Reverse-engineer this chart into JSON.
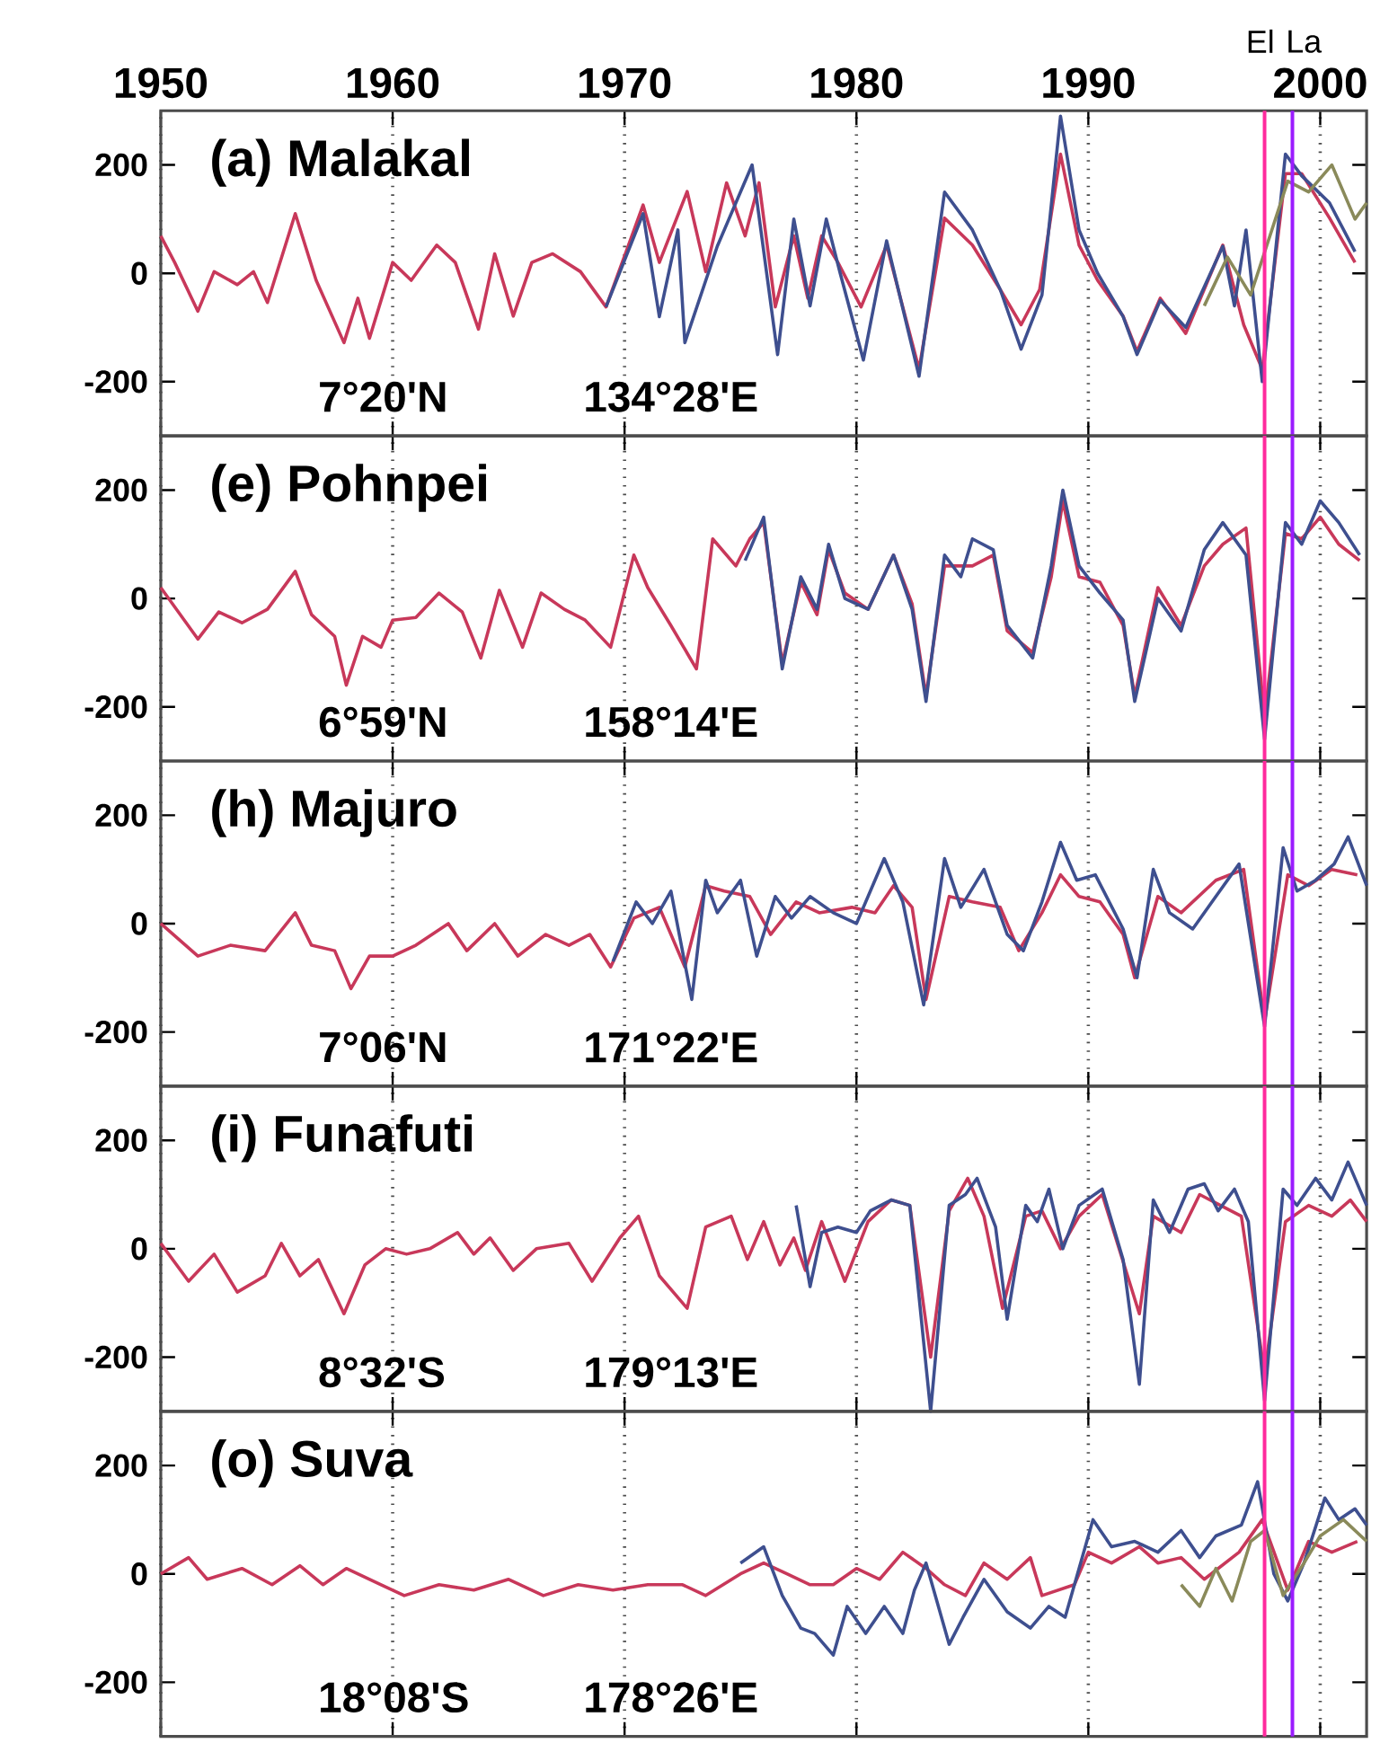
{
  "chart_data": [
    {
      "type": "line",
      "title": "(a) Malakal",
      "annotations": [
        "7°20'N",
        "134°28'E"
      ],
      "xlim": [
        1950,
        2002
      ],
      "xticks": [
        1950,
        1960,
        1970,
        1980,
        1990,
        2000
      ],
      "ylim": [
        -300,
        300
      ],
      "yticks": [
        -200,
        0,
        200
      ],
      "grid": "x",
      "ref_lines": [
        {
          "axis": "x",
          "value": 1997.6,
          "label": "El",
          "color": "#ff2a9d"
        },
        {
          "axis": "x",
          "value": 1998.8,
          "label": "La",
          "color": "#9b1cff"
        }
      ],
      "series": [
        {
          "color": "#c8385a",
          "x": [
            1950,
            1950.6,
            1951.6,
            1952.3,
            1953.3,
            1954,
            1954.6,
            1955.8,
            1956.7,
            1957.9,
            1958.5,
            1959,
            1960,
            1960.8,
            1961.9,
            1962.7,
            1963.7,
            1964.4,
            1965.2,
            1966,
            1966.9,
            1968.1,
            1969.2,
            1970.8,
            1971.5,
            1972.7,
            1973.5,
            1974.4,
            1975.2,
            1975.8,
            1976.5,
            1977.3,
            1977.9,
            1978.5,
            1979.2,
            1980.2,
            1981.3,
            1982.7,
            1983.8,
            1985,
            1986.2,
            1987.1,
            1987.9,
            1988.8,
            1989.6,
            1990.4,
            1991.5,
            1992.1,
            1993.1,
            1994.2,
            1995.8,
            1996.7,
            1997.5,
            1998.5,
            1999.2,
            2000.4,
            2001.5
          ],
          "values": [
            69,
            20,
            -70,
            3,
            -21,
            3,
            -54,
            110,
            -13,
            -128,
            -46,
            -120,
            20,
            -13,
            52,
            20,
            -103,
            36,
            -79,
            20,
            36,
            3,
            -62,
            126,
            20,
            151,
            3,
            167,
            69,
            167,
            -62,
            69,
            -46,
            69,
            20,
            -62,
            52,
            -177,
            102,
            52,
            -30,
            -95,
            -30,
            220,
            52,
            -13,
            -79,
            -144,
            -46,
            -111,
            52,
            -95,
            -177,
            184,
            184,
            102,
            20
          ]
        },
        {
          "color": "#3e4f8f",
          "x": [
            1969.2,
            1970.8,
            1971.5,
            1972.3,
            1972.6,
            1974,
            1975.5,
            1976.6,
            1977.3,
            1978,
            1978.7,
            1979.3,
            1980.3,
            1981.3,
            1982.7,
            1983.8,
            1985,
            1986.2,
            1987.1,
            1988,
            1988.8,
            1989.6,
            1990.4,
            1991.5,
            1992.1,
            1993.1,
            1994.2,
            1995.8,
            1996.3,
            1996.8,
            1997.5,
            1998.5,
            1999.2,
            2000.4,
            2001.5
          ],
          "values": [
            -62,
            110,
            -80,
            80,
            -128,
            50,
            200,
            -150,
            100,
            -60,
            100,
            0,
            -160,
            60,
            -190,
            150,
            80,
            -30,
            -140,
            -40,
            290,
            80,
            0,
            -80,
            -150,
            -50,
            -100,
            50,
            -60,
            80,
            -200,
            220,
            180,
            130,
            40
          ]
        },
        {
          "color": "#8a8a5a",
          "x": [
            1995,
            1996,
            1997,
            1998.6,
            1999.5,
            2000.5,
            2001.5,
            2002
          ],
          "values": [
            -60,
            30,
            -40,
            170,
            150,
            200,
            100,
            130
          ]
        }
      ]
    },
    {
      "type": "line",
      "title": "(e) Pohnpei",
      "annotations": [
        "6°59'N",
        "158°14'E"
      ],
      "xlim": [
        1950,
        2002
      ],
      "xticks": [
        1950,
        1960,
        1970,
        1980,
        1990,
        2000
      ],
      "ylim": [
        -300,
        300
      ],
      "yticks": [
        -200,
        0,
        200
      ],
      "grid": "x",
      "tick_labels": "y",
      "ref_lines": [
        {
          "axis": "x",
          "value": 1997.6,
          "color": "#ff2a9d"
        },
        {
          "axis": "x",
          "value": 1998.8,
          "color": "#9b1cff"
        }
      ],
      "series": [
        {
          "color": "#c8385a",
          "x": [
            1950,
            1951.6,
            1952.5,
            1953.5,
            1954.6,
            1955.8,
            1956.5,
            1957.5,
            1958,
            1958.7,
            1959.5,
            1960,
            1961,
            1962,
            1963,
            1963.8,
            1964.6,
            1965.6,
            1966.4,
            1967.4,
            1968.3,
            1969.4,
            1970.4,
            1971,
            1972,
            1973.1,
            1973.8,
            1974.8,
            1975.4,
            1976,
            1976.8,
            1977.6,
            1978.3,
            1978.8,
            1979.5,
            1980.5,
            1981.6,
            1982.4,
            1983,
            1983.8,
            1985,
            1985.9,
            1986.5,
            1987.6,
            1988.4,
            1988.9,
            1989.6,
            1990.5,
            1991.5,
            1992,
            1993,
            1994,
            1995,
            1995.8,
            1996.8,
            1997.6,
            1998.5,
            1999.2,
            2000,
            2000.8,
            2001.7
          ],
          "values": [
            20,
            -75,
            -25,
            -45,
            -20,
            50,
            -30,
            -70,
            -160,
            -70,
            -90,
            -40,
            -35,
            10,
            -25,
            -110,
            15,
            -90,
            10,
            -20,
            -40,
            -90,
            80,
            20,
            -50,
            -130,
            110,
            60,
            110,
            140,
            -120,
            30,
            -30,
            90,
            10,
            -20,
            80,
            -10,
            -180,
            60,
            60,
            80,
            -60,
            -100,
            40,
            180,
            40,
            30,
            -50,
            -180,
            20,
            -50,
            60,
            100,
            130,
            -220,
            120,
            110,
            150,
            100,
            70
          ]
        },
        {
          "color": "#3e4f8f",
          "x": [
            1975.2,
            1976,
            1976.8,
            1977.6,
            1978.3,
            1978.8,
            1979.5,
            1980.5,
            1981.6,
            1982.4,
            1983,
            1983.8,
            1984.5,
            1985,
            1985.9,
            1986.5,
            1987.6,
            1988.4,
            1988.9,
            1989.6,
            1990.5,
            1991.5,
            1992,
            1993,
            1994,
            1995,
            1995.8,
            1996.8,
            1997.6,
            1998.5,
            1999.2,
            2000,
            2000.8,
            2001.7
          ],
          "values": [
            70,
            150,
            -130,
            40,
            -20,
            100,
            0,
            -20,
            80,
            -20,
            -190,
            80,
            40,
            110,
            90,
            -50,
            -110,
            60,
            200,
            60,
            10,
            -40,
            -190,
            0,
            -60,
            90,
            140,
            80,
            -260,
            140,
            100,
            180,
            140,
            80
          ]
        }
      ]
    },
    {
      "type": "line",
      "title": "(h) Majuro",
      "annotations": [
        "7°06'N",
        "171°22'E"
      ],
      "xlim": [
        1950,
        2002
      ],
      "xticks": [
        1950,
        1960,
        1970,
        1980,
        1990,
        2000
      ],
      "ylim": [
        -300,
        300
      ],
      "yticks": [
        -200,
        0,
        200
      ],
      "grid": "x",
      "tick_labels": "y",
      "ref_lines": [
        {
          "axis": "x",
          "value": 1997.6,
          "color": "#ff2a9d"
        },
        {
          "axis": "x",
          "value": 1998.8,
          "color": "#9b1cff"
        }
      ],
      "series": [
        {
          "color": "#c8385a",
          "x": [
            1950,
            1951.6,
            1953,
            1954.5,
            1955.8,
            1956.5,
            1957.5,
            1958.2,
            1959,
            1960,
            1961,
            1962.4,
            1963.2,
            1964.4,
            1965.4,
            1966.6,
            1967.6,
            1968.5,
            1969.4,
            1970.4,
            1971.5,
            1972.6,
            1973.5,
            1974.3,
            1975.4,
            1976.3,
            1977.4,
            1978.4,
            1979.8,
            1980.8,
            1981.6,
            1982.4,
            1983,
            1984,
            1985,
            1986.2,
            1987,
            1988,
            1988.8,
            1989.6,
            1990.5,
            1991.5,
            1992,
            1993,
            1994,
            1995.5,
            1996.7,
            1997.6,
            1998.6,
            1999.5,
            2000.5,
            2001.6
          ],
          "values": [
            0,
            -60,
            -40,
            -50,
            20,
            -40,
            -50,
            -120,
            -60,
            -60,
            -40,
            0,
            -50,
            0,
            -60,
            -20,
            -40,
            -20,
            -80,
            10,
            30,
            -80,
            70,
            60,
            50,
            -20,
            40,
            20,
            30,
            20,
            70,
            30,
            -140,
            50,
            40,
            30,
            -50,
            20,
            90,
            50,
            40,
            -20,
            -100,
            50,
            20,
            80,
            100,
            -180,
            90,
            70,
            100,
            90
          ]
        },
        {
          "color": "#3e4f8f",
          "x": [
            1969.5,
            1970.5,
            1971.2,
            1972,
            1972.9,
            1973.5,
            1974,
            1975,
            1975.7,
            1976.5,
            1977.2,
            1978,
            1979,
            1980,
            1981.2,
            1982,
            1982.9,
            1983.8,
            1984.5,
            1985.5,
            1986.5,
            1987.2,
            1988,
            1988.8,
            1989.5,
            1990.3,
            1991.5,
            1992.1,
            1992.8,
            1993.5,
            1994.5,
            1995.5,
            1996.5,
            1997.6,
            1998.4,
            1999,
            1999.8,
            2000.6,
            2001.2,
            2002
          ],
          "values": [
            -70,
            40,
            0,
            60,
            -140,
            80,
            20,
            80,
            -60,
            50,
            10,
            50,
            20,
            0,
            120,
            40,
            -150,
            120,
            30,
            100,
            -20,
            -50,
            40,
            150,
            80,
            90,
            -10,
            -100,
            100,
            20,
            -10,
            50,
            110,
            -190,
            140,
            60,
            80,
            110,
            160,
            70
          ]
        }
      ]
    },
    {
      "type": "line",
      "title": "(i) Funafuti",
      "annotations": [
        "8°32'S",
        "179°13'E"
      ],
      "xlim": [
        1950,
        2002
      ],
      "xticks": [
        1950,
        1960,
        1970,
        1980,
        1990,
        2000
      ],
      "ylim": [
        -300,
        300
      ],
      "yticks": [
        -200,
        0,
        200
      ],
      "grid": "x",
      "tick_labels": "y",
      "ref_lines": [
        {
          "axis": "x",
          "value": 1997.6,
          "color": "#ff2a9d"
        },
        {
          "axis": "x",
          "value": 1998.8,
          "color": "#9b1cff"
        }
      ],
      "series": [
        {
          "color": "#c8385a",
          "x": [
            1950,
            1951.2,
            1952.3,
            1953.3,
            1954.5,
            1955.2,
            1956,
            1956.8,
            1957.9,
            1958.8,
            1959.7,
            1960.6,
            1961.6,
            1962.8,
            1963.5,
            1964.2,
            1965.2,
            1966.2,
            1967.6,
            1968.6,
            1969.8,
            1970.6,
            1971.5,
            1972.7,
            1973.5,
            1974.6,
            1975.3,
            1976,
            1976.7,
            1977.3,
            1977.8,
            1978.5,
            1979.5,
            1980.5,
            1981.5,
            1982.3,
            1983.2,
            1984,
            1984.8,
            1985.5,
            1986.3,
            1987.3,
            1988,
            1988.8,
            1989.6,
            1990.6,
            1992.2,
            1992.8,
            1994,
            1994.8,
            1995.7,
            1996.6,
            1997.6,
            1998.5,
            1999.5,
            2000.5,
            2001.3,
            2002
          ],
          "values": [
            10,
            -60,
            -10,
            -80,
            -50,
            10,
            -50,
            -20,
            -120,
            -30,
            0,
            -10,
            0,
            30,
            -10,
            20,
            -40,
            0,
            10,
            -60,
            20,
            60,
            -50,
            -110,
            40,
            60,
            -20,
            50,
            -30,
            20,
            -40,
            50,
            -60,
            50,
            90,
            80,
            -200,
            70,
            130,
            60,
            -110,
            60,
            70,
            0,
            60,
            100,
            -120,
            60,
            30,
            100,
            80,
            60,
            -230,
            50,
            80,
            60,
            90,
            50
          ]
        },
        {
          "color": "#3e4f8f",
          "x": [
            1977.4,
            1978,
            1978.5,
            1979.2,
            1980,
            1980.6,
            1981.5,
            1982.3,
            1983.2,
            1984,
            1984.7,
            1985.2,
            1986,
            1986.5,
            1987.3,
            1987.8,
            1988.3,
            1988.9,
            1989.6,
            1990.6,
            1991.5,
            1992.2,
            1992.8,
            1993.5,
            1994.3,
            1995,
            1995.6,
            1996.3,
            1996.9,
            1997.6,
            1998.4,
            1999,
            1999.8,
            2000.5,
            2001.2,
            2002
          ],
          "values": [
            80,
            -70,
            30,
            40,
            30,
            70,
            90,
            80,
            -300,
            80,
            100,
            130,
            40,
            -130,
            80,
            50,
            110,
            0,
            80,
            110,
            -20,
            -250,
            90,
            30,
            110,
            120,
            70,
            110,
            50,
            -280,
            110,
            80,
            130,
            90,
            160,
            80
          ]
        }
      ]
    },
    {
      "type": "line",
      "title": "(o) Suva",
      "annotations": [
        "18°08'S",
        "178°26'E"
      ],
      "xlim": [
        1950,
        2002
      ],
      "xticks": [
        1950,
        1960,
        1970,
        1980,
        1990,
        2000
      ],
      "ylim": [
        -300,
        300
      ],
      "yticks": [
        -200,
        0,
        200
      ],
      "grid": "x",
      "tick_labels": "y",
      "ref_lines": [
        {
          "axis": "x",
          "value": 1997.6,
          "color": "#ff2a9d"
        },
        {
          "axis": "x",
          "value": 1998.8,
          "color": "#9b1cff"
        }
      ],
      "series": [
        {
          "color": "#c8385a",
          "x": [
            1950,
            1951.2,
            1952,
            1953.5,
            1954.8,
            1956,
            1957,
            1958,
            1959.5,
            1960.5,
            1962,
            1963.5,
            1965,
            1966.5,
            1968,
            1969.5,
            1971,
            1972.5,
            1973.5,
            1975,
            1976,
            1977,
            1978,
            1979,
            1980,
            1981,
            1982,
            1983,
            1983.8,
            1984.7,
            1985.5,
            1986.5,
            1987.5,
            1988,
            1989.4,
            1990,
            1991,
            1992.2,
            1993,
            1994,
            1995,
            1996.5,
            1997.5,
            1998.6,
            1999.5,
            2000.5,
            2001.6
          ],
          "values": [
            0,
            30,
            -10,
            10,
            -20,
            15,
            -20,
            10,
            -20,
            -40,
            -20,
            -30,
            -10,
            -40,
            -20,
            -30,
            -20,
            -20,
            -40,
            0,
            20,
            0,
            -20,
            -20,
            10,
            -10,
            40,
            10,
            -20,
            -40,
            20,
            -10,
            30,
            -40,
            -20,
            40,
            20,
            50,
            20,
            30,
            -10,
            40,
            100,
            -30,
            60,
            40,
            60
          ]
        },
        {
          "color": "#3e4f8f",
          "x": [
            1975,
            1976,
            1976.8,
            1977.6,
            1978.2,
            1979,
            1979.6,
            1980.4,
            1981.2,
            1982,
            1982.5,
            1983,
            1984,
            1984.6,
            1985.5,
            1986.5,
            1987.5,
            1988.3,
            1989,
            1989.8,
            1990.2,
            1991,
            1992,
            1993,
            1994,
            1994.8,
            1995.5,
            1996.6,
            1997.3,
            1998,
            1998.6,
            1999.3,
            2000.2,
            2000.8,
            2001.5,
            2002
          ],
          "values": [
            20,
            50,
            -40,
            -100,
            -110,
            -150,
            -60,
            -110,
            -60,
            -110,
            -30,
            20,
            -130,
            -80,
            -10,
            -70,
            -100,
            -60,
            -80,
            40,
            100,
            50,
            60,
            40,
            80,
            30,
            70,
            90,
            170,
            0,
            -50,
            20,
            140,
            100,
            120,
            90
          ]
        },
        {
          "color": "#8a8a5a",
          "x": [
            1994,
            1994.8,
            1995.5,
            1996.2,
            1997,
            1997.6,
            1998.4,
            1999.3,
            2000,
            2001,
            2002
          ],
          "values": [
            -20,
            -60,
            10,
            -50,
            60,
            80,
            -40,
            20,
            70,
            100,
            60
          ]
        }
      ]
    }
  ]
}
